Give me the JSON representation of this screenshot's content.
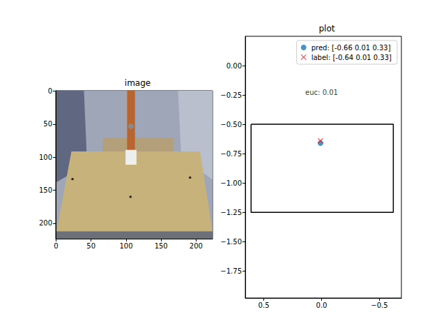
{
  "chart_data": [
    {
      "type": "image",
      "title": "image",
      "xlim": [
        -0.5,
        223.5
      ],
      "ylim": [
        223.5,
        -0.5
      ],
      "xticks": [
        0,
        50,
        100,
        150,
        200
      ],
      "yticks": [
        0,
        50,
        100,
        150,
        200
      ],
      "grid": false
    },
    {
      "type": "scatter",
      "title": "plot",
      "xlim": [
        0.66,
        -0.69
      ],
      "ylim": [
        -1.98,
        0.25
      ],
      "xticks": [
        0.5,
        {
          "value": 0,
          "label": "0.0"
        },
        {
          "value": -0.5,
          "label": "−0.5"
        }
      ],
      "yticks": [
        {
          "value": 0,
          "label": "0.00"
        },
        {
          "value": -0.25,
          "label": "−0.25"
        },
        {
          "value": -0.5,
          "label": "−0.50"
        },
        {
          "value": -0.75,
          "label": "−0.75"
        },
        {
          "value": -1,
          "label": "−1.00"
        },
        {
          "value": -1.25,
          "label": "−1.25"
        },
        {
          "value": -1.5,
          "label": "−1.50"
        },
        {
          "value": -1.75,
          "label": "−1.75"
        }
      ],
      "grid": false,
      "legend": "upper right",
      "series": [
        {
          "name": "pred: [-0.66 0.01 0.33]",
          "color": "#1f77b4",
          "marker": "circle",
          "x": [
            0.01
          ],
          "y": [
            -0.66
          ]
        },
        {
          "name": "label: [-0.64 0.01 0.33]",
          "color": "#d62728",
          "marker": "x",
          "x": [
            0.01
          ],
          "y": [
            -0.64
          ]
        }
      ],
      "shapes": [
        {
          "type": "rectangle",
          "x": [
            0.61,
            -0.62
          ],
          "y": [
            -0.5,
            -1.25
          ],
          "color": "#000000"
        }
      ],
      "annotations": [
        {
          "text": "euc: 0.01",
          "x": 0,
          "y": -0.23
        }
      ]
    }
  ]
}
